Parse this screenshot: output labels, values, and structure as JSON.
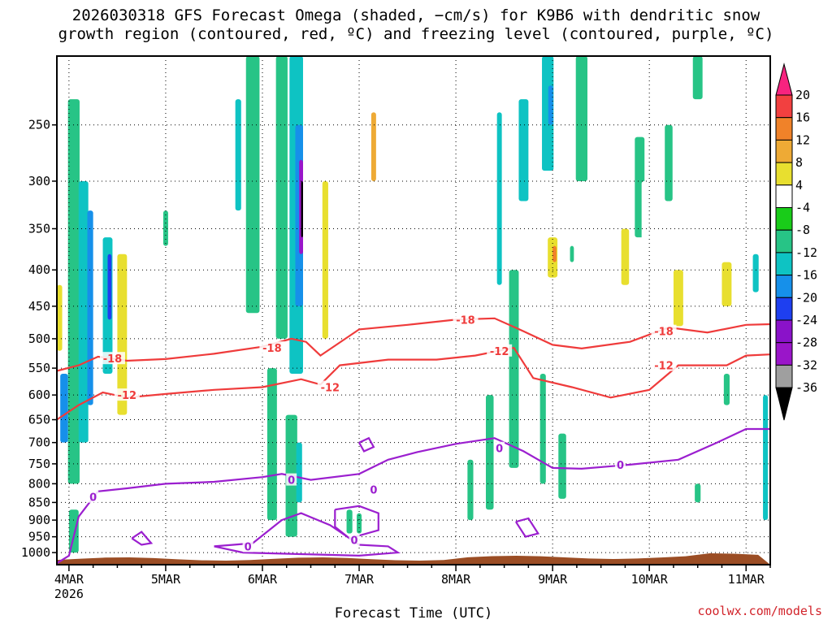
{
  "title": "2026030318 GFS Forecast Omega (shaded, −cm/s) for K9B6 with dendritic snow\ngrowth region (contoured, red, ºC) and freezing level (contoured, purple, ºC)",
  "credit": "coolwx.com/models",
  "chart_data": {
    "type": "heatmap",
    "xlabel": "Forecast Time (UTC)",
    "ylabel": "",
    "x_ticks": [
      "4MAR",
      "5MAR",
      "6MAR",
      "7MAR",
      "8MAR",
      "9MAR",
      "10MAR",
      "11MAR"
    ],
    "x_sub": "2026",
    "x_range_days": [
      3.875,
      11.25
    ],
    "y_ticks": [
      250,
      300,
      350,
      400,
      450,
      500,
      550,
      600,
      650,
      700,
      750,
      800,
      850,
      900,
      950,
      1000
    ],
    "y_range_hpa": [
      200,
      1040
    ],
    "y_scale": "log-pressure",
    "grid": "dotted",
    "colorbar": {
      "labels": [
        20,
        16,
        12,
        8,
        4,
        -4,
        -8,
        -12,
        -16,
        -20,
        -24,
        -28,
        -32,
        -36
      ],
      "colors": [
        "#f7237f",
        "#f24040",
        "#f08229",
        "#eeaa35",
        "#e8df2f",
        "#ffffff",
        "#19cc19",
        "#27c486",
        "#0ec3c3",
        "#1690ea",
        "#1e3ff0",
        "#8a12c9",
        "#9a15c9",
        "#9f9f9f",
        "#000000"
      ]
    },
    "dendritic_contours": [
      {
        "label": "-18",
        "points": [
          [
            3.875,
            555
          ],
          [
            4.1,
            545
          ],
          [
            4.3,
            530
          ],
          [
            4.6,
            537
          ],
          [
            5.0,
            534
          ],
          [
            5.5,
            525
          ],
          [
            6.0,
            513
          ],
          [
            6.3,
            500
          ],
          [
            6.45,
            505
          ],
          [
            6.6,
            528
          ],
          [
            7.0,
            485
          ],
          [
            7.5,
            478
          ],
          [
            8.0,
            470
          ],
          [
            8.4,
            468
          ],
          [
            8.7,
            488
          ],
          [
            9.0,
            510
          ],
          [
            9.3,
            516
          ],
          [
            9.8,
            505
          ],
          [
            10.2,
            482
          ],
          [
            10.6,
            490
          ],
          [
            11.0,
            478
          ],
          [
            11.25,
            477
          ]
        ]
      },
      {
        "label": "-12",
        "points": [
          [
            3.875,
            650
          ],
          [
            4.1,
            620
          ],
          [
            4.35,
            595
          ],
          [
            4.6,
            605
          ],
          [
            5.0,
            598
          ],
          [
            5.5,
            590
          ],
          [
            6.0,
            585
          ],
          [
            6.4,
            570
          ],
          [
            6.6,
            580
          ],
          [
            6.8,
            545
          ],
          [
            7.3,
            535
          ],
          [
            7.8,
            535
          ],
          [
            8.2,
            528
          ],
          [
            8.6,
            515
          ],
          [
            8.8,
            568
          ],
          [
            9.2,
            585
          ],
          [
            9.6,
            605
          ],
          [
            10.0,
            590
          ],
          [
            10.3,
            545
          ],
          [
            10.8,
            545
          ],
          [
            11.0,
            528
          ],
          [
            11.25,
            526
          ]
        ]
      }
    ],
    "dendritic_label_positions": [
      {
        "label": "-18",
        "x": 4.45,
        "p": 533
      },
      {
        "label": "-18",
        "x": 6.1,
        "p": 515
      },
      {
        "label": "-18",
        "x": 8.1,
        "p": 470
      },
      {
        "label": "-18",
        "x": 10.15,
        "p": 488
      },
      {
        "label": "-12",
        "x": 4.6,
        "p": 600
      },
      {
        "label": "-12",
        "x": 6.7,
        "p": 585
      },
      {
        "label": "-12",
        "x": 8.45,
        "p": 520
      },
      {
        "label": "-12",
        "x": 10.15,
        "p": 545
      }
    ],
    "freezing_contours": [
      {
        "label": "0",
        "points": [
          [
            3.875,
            1035
          ],
          [
            4.0,
            1010
          ],
          [
            4.1,
            890
          ],
          [
            4.3,
            820
          ],
          [
            4.6,
            812
          ],
          [
            5.0,
            800
          ],
          [
            5.5,
            795
          ],
          [
            6.0,
            783
          ],
          [
            6.2,
            775
          ],
          [
            6.5,
            790
          ],
          [
            7.0,
            775
          ],
          [
            7.3,
            740
          ],
          [
            7.6,
            722
          ],
          [
            8.0,
            703
          ],
          [
            8.4,
            690
          ],
          [
            8.7,
            720
          ],
          [
            9.0,
            760
          ],
          [
            9.3,
            762
          ],
          [
            9.8,
            752
          ],
          [
            10.3,
            740
          ],
          [
            10.7,
            700
          ],
          [
            11.0,
            670
          ],
          [
            11.25,
            670
          ]
        ]
      },
      {
        "label": "0",
        "points": [
          [
            5.5,
            980
          ],
          [
            5.7,
            975
          ],
          [
            5.9,
            970
          ],
          [
            6.2,
            900
          ],
          [
            6.4,
            880
          ],
          [
            6.7,
            915
          ],
          [
            7.0,
            975
          ],
          [
            7.3,
            980
          ],
          [
            7.4,
            1000
          ],
          [
            7.0,
            1010
          ],
          [
            6.4,
            1005
          ],
          [
            5.8,
            1000
          ],
          [
            5.5,
            980
          ]
        ]
      },
      {
        "label": "0",
        "points": [
          [
            6.75,
            870
          ],
          [
            7.0,
            860
          ],
          [
            7.2,
            880
          ],
          [
            7.2,
            930
          ],
          [
            6.9,
            955
          ],
          [
            6.75,
            920
          ],
          [
            6.75,
            870
          ]
        ]
      },
      {
        "label": "0",
        "points": [
          [
            7.0,
            700
          ],
          [
            7.1,
            690
          ],
          [
            7.15,
            710
          ],
          [
            7.05,
            720
          ],
          [
            7.0,
            700
          ]
        ]
      },
      {
        "label": "0",
        "points": [
          [
            4.65,
            955
          ],
          [
            4.75,
            935
          ],
          [
            4.85,
            970
          ],
          [
            4.75,
            975
          ],
          [
            4.65,
            955
          ]
        ]
      },
      {
        "label": "0",
        "points": [
          [
            8.62,
            905
          ],
          [
            8.75,
            895
          ],
          [
            8.85,
            940
          ],
          [
            8.72,
            950
          ],
          [
            8.62,
            905
          ]
        ]
      }
    ],
    "freezing_label_positions": [
      {
        "label": "0",
        "x": 4.25,
        "p": 835
      },
      {
        "label": "0",
        "x": 6.3,
        "p": 790
      },
      {
        "label": "0",
        "x": 7.15,
        "p": 815
      },
      {
        "label": "0",
        "x": 8.45,
        "p": 713
      },
      {
        "label": "0",
        "x": 9.7,
        "p": 752
      },
      {
        "label": "0",
        "x": 5.85,
        "p": 980
      },
      {
        "label": "0",
        "x": 6.95,
        "p": 960
      }
    ],
    "omega_cells": [
      {
        "x": 4.05,
        "w": 0.12,
        "p1": 230,
        "p2": 800,
        "v": -8
      },
      {
        "x": 4.15,
        "w": 0.1,
        "p1": 300,
        "p2": 700,
        "v": -12
      },
      {
        "x": 4.22,
        "w": 0.06,
        "p1": 330,
        "p2": 620,
        "v": -16
      },
      {
        "x": 3.95,
        "w": 0.08,
        "p1": 560,
        "p2": 700,
        "v": -16
      },
      {
        "x": 4.4,
        "w": 0.1,
        "p1": 360,
        "p2": 560,
        "v": -12
      },
      {
        "x": 4.42,
        "w": 0.04,
        "p1": 380,
        "p2": 470,
        "v": -20
      },
      {
        "x": 4.55,
        "w": 0.1,
        "p1": 380,
        "p2": 640,
        "v": 8
      },
      {
        "x": 3.9,
        "w": 0.06,
        "p1": 420,
        "p2": 520,
        "v": 8
      },
      {
        "x": 4.05,
        "w": 0.1,
        "p1": 870,
        "p2": 1000,
        "v": -8
      },
      {
        "x": 5.0,
        "w": 0.05,
        "p1": 330,
        "p2": 370,
        "v": -8
      },
      {
        "x": 5.6,
        "w": 0.04,
        "p1": 220,
        "p2": 430,
        "v": 4
      },
      {
        "x": 5.75,
        "w": 0.06,
        "p1": 230,
        "p2": 330,
        "v": -12
      },
      {
        "x": 5.9,
        "w": 0.14,
        "p1": 200,
        "p2": 460,
        "v": -8
      },
      {
        "x": 6.2,
        "w": 0.12,
        "p1": 200,
        "p2": 500,
        "v": -8
      },
      {
        "x": 6.35,
        "w": 0.14,
        "p1": 200,
        "p2": 560,
        "v": -12
      },
      {
        "x": 6.38,
        "w": 0.08,
        "p1": 250,
        "p2": 450,
        "v": -16
      },
      {
        "x": 6.4,
        "w": 0.04,
        "p1": 280,
        "p2": 380,
        "v": -28
      },
      {
        "x": 6.41,
        "w": 0.02,
        "p1": 300,
        "p2": 360,
        "v": -36
      },
      {
        "x": 6.1,
        "w": 0.1,
        "p1": 550,
        "p2": 900,
        "v": -8
      },
      {
        "x": 6.3,
        "w": 0.12,
        "p1": 640,
        "p2": 950,
        "v": -8
      },
      {
        "x": 6.38,
        "w": 0.06,
        "p1": 700,
        "p2": 850,
        "v": -12
      },
      {
        "x": 6.6,
        "w": 0.12,
        "p1": 240,
        "p2": 600,
        "v": 4
      },
      {
        "x": 6.65,
        "w": 0.06,
        "p1": 300,
        "p2": 500,
        "v": 8
      },
      {
        "x": 6.9,
        "w": 0.08,
        "p1": 250,
        "p2": 500,
        "v": 4
      },
      {
        "x": 7.1,
        "w": 0.1,
        "p1": 220,
        "p2": 600,
        "v": 4
      },
      {
        "x": 7.15,
        "w": 0.05,
        "p1": 240,
        "p2": 300,
        "v": 12
      },
      {
        "x": 6.9,
        "w": 0.06,
        "p1": 870,
        "p2": 940,
        "v": -8
      },
      {
        "x": 7.0,
        "w": 0.05,
        "p1": 880,
        "p2": 940,
        "v": -8
      },
      {
        "x": 7.5,
        "w": 0.06,
        "p1": 260,
        "p2": 380,
        "v": 4
      },
      {
        "x": 7.9,
        "w": 0.05,
        "p1": 230,
        "p2": 330,
        "v": 4
      },
      {
        "x": 8.15,
        "w": 0.1,
        "p1": 230,
        "p2": 560,
        "v": 4
      },
      {
        "x": 8.1,
        "w": 0.08,
        "p1": 650,
        "p2": 870,
        "v": 4
      },
      {
        "x": 8.15,
        "w": 0.06,
        "p1": 740,
        "p2": 900,
        "v": -8
      },
      {
        "x": 8.35,
        "w": 0.08,
        "p1": 600,
        "p2": 870,
        "v": -8
      },
      {
        "x": 8.45,
        "w": 0.05,
        "p1": 240,
        "p2": 420,
        "v": -12
      },
      {
        "x": 8.6,
        "w": 0.1,
        "p1": 400,
        "p2": 760,
        "v": -8
      },
      {
        "x": 8.7,
        "w": 0.1,
        "p1": 230,
        "p2": 320,
        "v": -12
      },
      {
        "x": 8.95,
        "w": 0.12,
        "p1": 200,
        "p2": 290,
        "v": -12
      },
      {
        "x": 8.98,
        "w": 0.05,
        "p1": 220,
        "p2": 250,
        "v": -16
      },
      {
        "x": 9.0,
        "w": 0.1,
        "p1": 360,
        "p2": 410,
        "v": 8
      },
      {
        "x": 9.02,
        "w": 0.04,
        "p1": 370,
        "p2": 390,
        "v": 16
      },
      {
        "x": 8.8,
        "w": 0.1,
        "p1": 550,
        "p2": 780,
        "v": 4
      },
      {
        "x": 8.9,
        "w": 0.06,
        "p1": 560,
        "p2": 800,
        "v": -8
      },
      {
        "x": 9.1,
        "w": 0.08,
        "p1": 680,
        "p2": 840,
        "v": -8
      },
      {
        "x": 9.2,
        "w": 0.04,
        "p1": 370,
        "p2": 390,
        "v": -8
      },
      {
        "x": 9.3,
        "w": 0.12,
        "p1": 200,
        "p2": 300,
        "v": -8
      },
      {
        "x": 9.6,
        "w": 0.06,
        "p1": 300,
        "p2": 350,
        "v": 4
      },
      {
        "x": 9.75,
        "w": 0.08,
        "p1": 350,
        "p2": 420,
        "v": 8
      },
      {
        "x": 9.9,
        "w": 0.1,
        "p1": 260,
        "p2": 360,
        "v": -8
      },
      {
        "x": 9.95,
        "w": 0.06,
        "p1": 300,
        "p2": 440,
        "v": 4
      },
      {
        "x": 10.2,
        "w": 0.08,
        "p1": 250,
        "p2": 320,
        "v": -8
      },
      {
        "x": 10.3,
        "w": 0.1,
        "p1": 400,
        "p2": 480,
        "v": 8
      },
      {
        "x": 10.5,
        "w": 0.1,
        "p1": 200,
        "p2": 230,
        "v": -8
      },
      {
        "x": 10.65,
        "w": 0.12,
        "p1": 400,
        "p2": 560,
        "v": 4
      },
      {
        "x": 10.8,
        "w": 0.1,
        "p1": 390,
        "p2": 450,
        "v": 8
      },
      {
        "x": 10.5,
        "w": 0.06,
        "p1": 800,
        "p2": 850,
        "v": -8
      },
      {
        "x": 10.8,
        "w": 0.06,
        "p1": 560,
        "p2": 620,
        "v": -8
      },
      {
        "x": 11.1,
        "w": 0.08,
        "p1": 200,
        "p2": 250,
        "v": 4
      },
      {
        "x": 11.1,
        "w": 0.06,
        "p1": 380,
        "p2": 430,
        "v": -12
      },
      {
        "x": 11.2,
        "w": 0.05,
        "p1": 600,
        "p2": 900,
        "v": -12
      }
    ]
  }
}
